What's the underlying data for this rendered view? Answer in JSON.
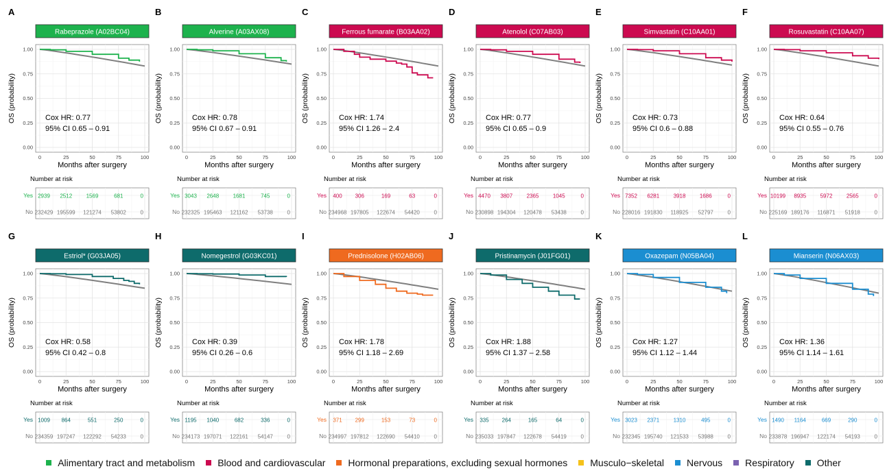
{
  "colors": {
    "reference": "#7f7f7f",
    "categories": {
      "alimentary": "#1db24d",
      "blood": "#cc0a50",
      "hormonal": "#ef6a1f",
      "musculo": "#f5c21b",
      "nervous": "#1b8ed1",
      "respiratory": "#7b62b0",
      "other": "#0e6b6b"
    }
  },
  "legend": [
    {
      "key": "alimentary",
      "label": "Alimentary tract and metabolism"
    },
    {
      "key": "blood",
      "label": "Blood and cardiovascular"
    },
    {
      "key": "hormonal",
      "label": "Hormonal preparations, excluding sexual hormones"
    },
    {
      "key": "musculo",
      "label": "Musculo−skeletal"
    },
    {
      "key": "nervous",
      "label": "Nervous"
    },
    {
      "key": "respiratory",
      "label": "Respiratory"
    },
    {
      "key": "other",
      "label": "Other"
    }
  ],
  "common": {
    "ylabel": "OS (probability)",
    "xlabel": "Months after surgery",
    "risk_title": "Number at risk",
    "risk_yes": "Yes",
    "risk_no": "No",
    "yticks": [
      "0.00",
      "0.25",
      "0.50",
      "0.75",
      "1.00"
    ],
    "xticks": [
      "0",
      "25",
      "50",
      "75",
      "100"
    ],
    "cox_prefix": "Cox HR: ",
    "ci_prefix": "95% CI "
  },
  "chart_data": [
    {
      "panel": "A",
      "type": "line",
      "title": "Rabeprazole (A02BC04)",
      "category": "alimentary",
      "hr": "0.77",
      "ci": "0.65 – 0.91",
      "xlim": [
        0,
        100
      ],
      "ylim": [
        0,
        1
      ],
      "ref_end": 0.83,
      "series": [
        {
          "x": [
            0,
            10,
            25,
            50,
            75,
            85,
            95
          ],
          "y": [
            1.0,
            0.995,
            0.98,
            0.95,
            0.91,
            0.89,
            0.875
          ]
        }
      ],
      "risk_yes": [
        "2939",
        "2512",
        "1569",
        "681",
        "0"
      ],
      "risk_no": [
        "232429",
        "195599",
        "121274",
        "53802",
        "0"
      ]
    },
    {
      "panel": "B",
      "type": "line",
      "title": "Alverine (A03AX08)",
      "category": "alimentary",
      "hr": "0.78",
      "ci": "0.67 – 0.91",
      "xlim": [
        0,
        100
      ],
      "ylim": [
        0,
        1
      ],
      "ref_end": 0.85,
      "series": [
        {
          "x": [
            0,
            10,
            25,
            50,
            75,
            90,
            95
          ],
          "y": [
            1.0,
            0.995,
            0.985,
            0.955,
            0.915,
            0.885,
            0.875
          ]
        }
      ],
      "risk_yes": [
        "3043",
        "2648",
        "1681",
        "745",
        "0"
      ],
      "risk_no": [
        "232325",
        "195463",
        "121162",
        "53738",
        "0"
      ]
    },
    {
      "panel": "C",
      "type": "line",
      "title": "Ferrous fumarate (B03AA02)",
      "category": "blood",
      "hr": "1.74",
      "ci": "1.26 – 2.4",
      "xlim": [
        0,
        100
      ],
      "ylim": [
        0,
        1
      ],
      "ref_end": 0.83,
      "series": [
        {
          "x": [
            0,
            10,
            20,
            25,
            35,
            50,
            60,
            65,
            70,
            75,
            80,
            85,
            90,
            95
          ],
          "y": [
            1.0,
            0.98,
            0.95,
            0.92,
            0.9,
            0.88,
            0.86,
            0.85,
            0.82,
            0.76,
            0.74,
            0.74,
            0.71,
            0.71
          ]
        }
      ],
      "risk_yes": [
        "400",
        "306",
        "169",
        "63",
        "0"
      ],
      "risk_no": [
        "234968",
        "197805",
        "122674",
        "54420",
        "0"
      ]
    },
    {
      "panel": "D",
      "type": "line",
      "title": "Atenolol (C07AB03)",
      "category": "blood",
      "hr": "0.77",
      "ci": "0.65 – 0.9",
      "xlim": [
        0,
        100
      ],
      "ylim": [
        0,
        1
      ],
      "ref_end": 0.83,
      "series": [
        {
          "x": [
            0,
            10,
            25,
            50,
            75,
            90,
            95
          ],
          "y": [
            1.0,
            0.995,
            0.98,
            0.95,
            0.9,
            0.87,
            0.86
          ]
        }
      ],
      "risk_yes": [
        "4470",
        "3807",
        "2365",
        "1045",
        "0"
      ],
      "risk_no": [
        "230898",
        "194304",
        "120478",
        "53438",
        "0"
      ]
    },
    {
      "panel": "E",
      "type": "line",
      "title": "Simvastatin (C10AA01)",
      "category": "blood",
      "hr": "0.73",
      "ci": "0.6 – 0.88",
      "xlim": [
        0,
        100
      ],
      "ylim": [
        0,
        1
      ],
      "ref_end": 0.84,
      "series": [
        {
          "x": [
            0,
            10,
            25,
            50,
            75,
            90,
            100
          ],
          "y": [
            1.0,
            0.997,
            0.985,
            0.955,
            0.915,
            0.89,
            0.875
          ]
        }
      ],
      "risk_yes": [
        "7352",
        "6281",
        "3918",
        "1686",
        "0"
      ],
      "risk_no": [
        "228016",
        "191830",
        "118925",
        "52797",
        "0"
      ]
    },
    {
      "panel": "F",
      "type": "line",
      "title": "Rosuvastatin (C10AA07)",
      "category": "blood",
      "hr": "0.64",
      "ci": "0.55 – 0.76",
      "xlim": [
        0,
        100
      ],
      "ylim": [
        0,
        1
      ],
      "ref_end": 0.83,
      "series": [
        {
          "x": [
            0,
            10,
            25,
            50,
            75,
            90,
            100
          ],
          "y": [
            1.0,
            0.997,
            0.985,
            0.965,
            0.935,
            0.91,
            0.9
          ]
        }
      ],
      "risk_yes": [
        "10199",
        "8935",
        "5972",
        "2565",
        "0"
      ],
      "risk_no": [
        "225169",
        "189176",
        "116871",
        "51918",
        "0"
      ]
    },
    {
      "panel": "G",
      "type": "line",
      "title": "Estriol* (G03JA05)",
      "category": "other",
      "hr": "0.58",
      "ci": "0.42 – 0.8",
      "xlim": [
        0,
        100
      ],
      "ylim": [
        0,
        1
      ],
      "ref_end": 0.85,
      "series": [
        {
          "x": [
            0,
            10,
            25,
            50,
            70,
            80,
            85,
            90,
            95
          ],
          "y": [
            1.0,
            0.998,
            0.99,
            0.97,
            0.95,
            0.93,
            0.92,
            0.9,
            0.89
          ]
        }
      ],
      "risk_yes": [
        "1009",
        "864",
        "551",
        "250",
        "0"
      ],
      "risk_no": [
        "234359",
        "197247",
        "122292",
        "54233",
        "0"
      ]
    },
    {
      "panel": "H",
      "type": "line",
      "title": "Nomegestrol (G03KC01)",
      "category": "other",
      "hr": "0.39",
      "ci": "0.26 – 0.6",
      "xlim": [
        0,
        100
      ],
      "ylim": [
        0,
        1
      ],
      "ref_end": 0.89,
      "series": [
        {
          "x": [
            0,
            10,
            25,
            50,
            75,
            95
          ],
          "y": [
            1.0,
            0.998,
            0.995,
            0.985,
            0.97,
            0.965
          ]
        }
      ],
      "risk_yes": [
        "1195",
        "1040",
        "682",
        "336",
        "0"
      ],
      "risk_no": [
        "234173",
        "197071",
        "122161",
        "54147",
        "0"
      ]
    },
    {
      "panel": "I",
      "type": "line",
      "title": "Prednisolone (H02AB06)",
      "category": "hormonal",
      "hr": "1.78",
      "ci": "1.18 – 2.69",
      "xlim": [
        0,
        100
      ],
      "ylim": [
        0,
        1
      ],
      "ref_end": 0.84,
      "series": [
        {
          "x": [
            0,
            10,
            25,
            40,
            50,
            60,
            70,
            80,
            85,
            95
          ],
          "y": [
            1.0,
            0.97,
            0.93,
            0.89,
            0.85,
            0.82,
            0.8,
            0.79,
            0.78,
            0.78
          ]
        }
      ],
      "risk_yes": [
        "371",
        "299",
        "153",
        "73",
        "0"
      ],
      "risk_no": [
        "234997",
        "197812",
        "122690",
        "54410",
        "0"
      ]
    },
    {
      "panel": "J",
      "type": "line",
      "title": "Pristinamycin (J01FG01)",
      "category": "other",
      "hr": "1.88",
      "ci": "1.37 – 2.58",
      "xlim": [
        0,
        100
      ],
      "ylim": [
        0,
        1
      ],
      "ref_end": 0.84,
      "series": [
        {
          "x": [
            0,
            10,
            25,
            40,
            50,
            65,
            75,
            90,
            95
          ],
          "y": [
            1.0,
            0.985,
            0.94,
            0.9,
            0.86,
            0.82,
            0.78,
            0.74,
            0.74
          ]
        }
      ],
      "risk_yes": [
        "335",
        "264",
        "165",
        "64",
        "0"
      ],
      "risk_no": [
        "235033",
        "197847",
        "122678",
        "54419",
        "0"
      ]
    },
    {
      "panel": "K",
      "type": "line",
      "title": "Oxazepam (N05BA04)",
      "category": "nervous",
      "hr": "1.27",
      "ci": "1.12 – 1.44",
      "xlim": [
        0,
        100
      ],
      "ylim": [
        0,
        1
      ],
      "ref_end": 0.82,
      "series": [
        {
          "x": [
            0,
            10,
            25,
            50,
            75,
            90,
            95
          ],
          "y": [
            1.0,
            0.99,
            0.96,
            0.91,
            0.86,
            0.82,
            0.8
          ]
        }
      ],
      "risk_yes": [
        "3023",
        "2371",
        "1310",
        "495",
        "0"
      ],
      "risk_no": [
        "232345",
        "195740",
        "121533",
        "53988",
        "0"
      ]
    },
    {
      "panel": "L",
      "type": "line",
      "title": "Mianserin (N06AX03)",
      "category": "nervous",
      "hr": "1.36",
      "ci": "1.14 – 1.61",
      "xlim": [
        0,
        100
      ],
      "ylim": [
        0,
        1
      ],
      "ref_end": 0.8,
      "series": [
        {
          "x": [
            0,
            10,
            25,
            50,
            75,
            90,
            95
          ],
          "y": [
            1.0,
            0.985,
            0.95,
            0.9,
            0.84,
            0.79,
            0.77
          ]
        }
      ],
      "risk_yes": [
        "1490",
        "1164",
        "669",
        "290",
        "0"
      ],
      "risk_no": [
        "233878",
        "196947",
        "122174",
        "54193",
        "0"
      ]
    }
  ]
}
